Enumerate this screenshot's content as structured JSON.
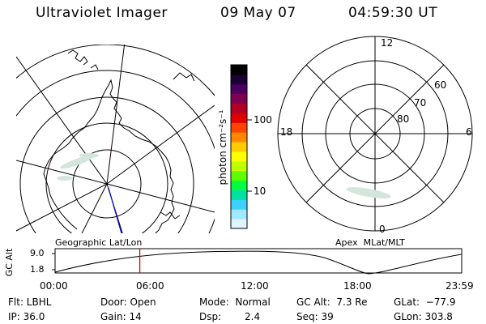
{
  "header": {
    "instrument": "Ultraviolet Imager",
    "date": "09 May 07",
    "time": "04:59:30 UT"
  },
  "colorbar": {
    "title": "photon cm⁻²s⁻¹",
    "ticks": [
      "100",
      "10"
    ],
    "colors": [
      "#000000",
      "#1a0033",
      "#4a0060",
      "#800050",
      "#b00028",
      "#e00000",
      "#ff4400",
      "#ff8800",
      "#ffcc00",
      "#ffff00",
      "#c0ff00",
      "#60ff00",
      "#00ff40",
      "#00e0a0",
      "#40d0ff",
      "#a0e8ff",
      "#e0f4ff"
    ]
  },
  "left_map": {
    "caption": "Geographic Lat/Lon"
  },
  "right_map": {
    "caption": "Apex  MLat/MLT",
    "mlt_labels": {
      "top": "12",
      "left": "18",
      "right": "6",
      "bottom": "0"
    },
    "lat_labels": [
      "80",
      "70",
      "60"
    ]
  },
  "altitude_plot": {
    "ylabel": "GC Alt",
    "y_ticks": [
      "9.0",
      "1.8"
    ],
    "x_ticks": [
      "00:00",
      "06:00",
      "12:00",
      "18:00",
      "23:59"
    ],
    "current_marker_hour": 5.0,
    "marker_color": "#e00000"
  },
  "info": {
    "filter": "Flt: LBHL",
    "door": "Door: Open",
    "mode": "Mode:  Normal",
    "gc_alt": "GC Alt:  7.3 Re",
    "glat": "GLat:  −77.9",
    "ip": "IP: 36.0",
    "gain": "Gain: 14",
    "dsp_label": "Dsp:",
    "dsp_value": "2.4",
    "seq": "Seq: 39",
    "glon": "GLon: 303.8"
  }
}
